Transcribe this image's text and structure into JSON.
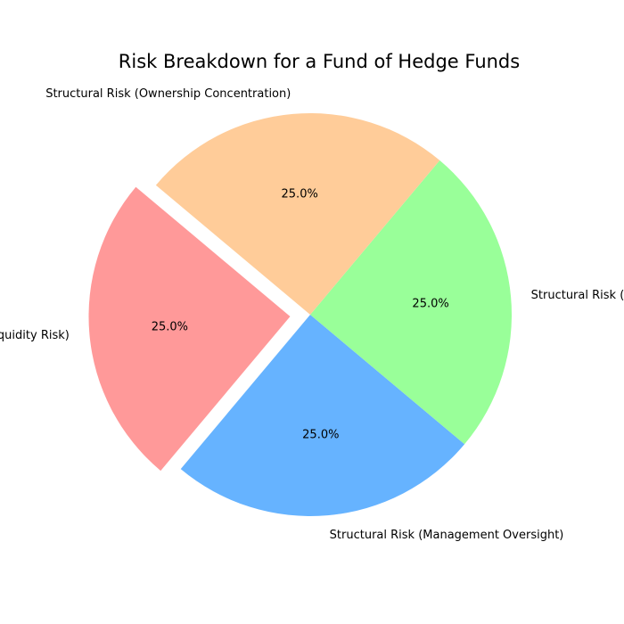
{
  "chart_data": {
    "type": "pie",
    "title": "Risk Breakdown for a Fund of Hedge Funds",
    "slices": [
      {
        "label": "Liquidity Risk (Full Liquidity Risk)",
        "value": 25,
        "pct_label": "25.0%",
        "color": "#ff9999",
        "exploded": true
      },
      {
        "label": "Structural Risk (Management Oversight)",
        "value": 25,
        "pct_label": "25.0%",
        "color": "#66b3ff",
        "exploded": false
      },
      {
        "label": "Structural Risk (Fund Structure)",
        "value": 25,
        "pct_label": "25.0%",
        "color": "#99ff99",
        "exploded": false
      },
      {
        "label": "Structural Risk (Ownership Concentration)",
        "value": 25,
        "pct_label": "25.0%",
        "color": "#ffcc99",
        "exploded": false
      }
    ],
    "start_angle_deg": 140,
    "direction": "counterclockwise",
    "legend": "none"
  }
}
